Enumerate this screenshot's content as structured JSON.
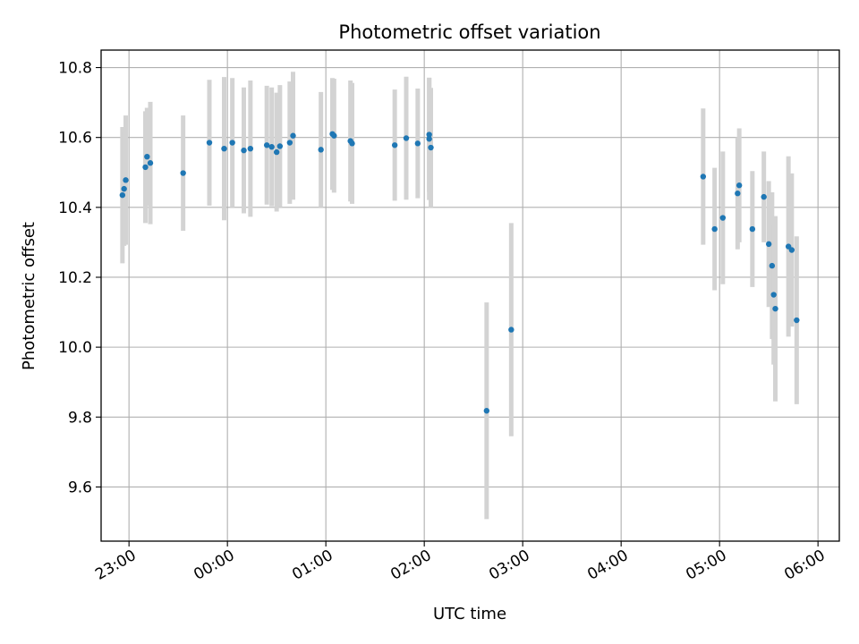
{
  "chart_data": {
    "type": "scatter",
    "title": "Photometric offset variation",
    "xlabel": "UTC time",
    "ylabel": "Photometric offset",
    "x_unit": "UTC time (hh:mm), night spanning midnight",
    "xlim": [
      "22:43",
      "06:13"
    ],
    "ylim": [
      9.445,
      10.85
    ],
    "grid": true,
    "x_ticks": [
      "23:00",
      "00:00",
      "01:00",
      "02:00",
      "03:00",
      "04:00",
      "05:00",
      "06:00"
    ],
    "y_ticks": [
      "9.6",
      "9.8",
      "10.0",
      "10.2",
      "10.4",
      "10.6",
      "10.8"
    ],
    "colors": {
      "points": "#1f77b4",
      "error_bars": "#d3d3d3",
      "grid": "#b0b0b0",
      "axes": "#000000"
    },
    "series": [
      {
        "x": [
          "22:56",
          "22:57",
          "22:58",
          "23:10",
          "23:11",
          "23:13",
          "23:33",
          "23:49",
          "23:58",
          "00:03",
          "00:10",
          "00:14",
          "00:24",
          "00:27",
          "00:30",
          "00:32",
          "00:38",
          "00:40",
          "00:57",
          "01:04",
          "01:05",
          "01:15",
          "01:16",
          "01:42",
          "01:49",
          "01:56",
          "02:03",
          "02:03",
          "02:04",
          "02:38",
          "02:53",
          "04:50",
          "04:57",
          "05:02",
          "05:11",
          "05:12",
          "05:20",
          "05:27",
          "05:30",
          "05:32",
          "05:33",
          "05:34",
          "05:42",
          "05:44",
          "05:47"
        ],
        "y": [
          10.435,
          10.453,
          10.478,
          10.515,
          10.545,
          10.527,
          10.498,
          10.585,
          10.568,
          10.585,
          10.563,
          10.568,
          10.578,
          10.573,
          10.558,
          10.575,
          10.585,
          10.605,
          10.565,
          10.61,
          10.605,
          10.59,
          10.583,
          10.578,
          10.598,
          10.583,
          10.608,
          10.596,
          10.571,
          9.818,
          10.05,
          10.488,
          10.338,
          10.37,
          10.44,
          10.463,
          10.338,
          10.43,
          10.295,
          10.233,
          10.15,
          10.11,
          10.288,
          10.278,
          10.077
        ],
        "yerr": [
          0.195,
          0.163,
          0.185,
          0.16,
          0.14,
          0.175,
          0.165,
          0.18,
          0.205,
          0.185,
          0.18,
          0.195,
          0.17,
          0.17,
          0.17,
          0.175,
          0.175,
          0.183,
          0.165,
          0.16,
          0.163,
          0.173,
          0.173,
          0.159,
          0.176,
          0.157,
          0.163,
          0.175,
          0.171,
          0.31,
          0.305,
          0.195,
          0.175,
          0.19,
          0.16,
          0.163,
          0.166,
          0.13,
          0.18,
          0.21,
          0.2,
          0.265,
          0.258,
          0.219,
          0.24
        ]
      }
    ]
  }
}
